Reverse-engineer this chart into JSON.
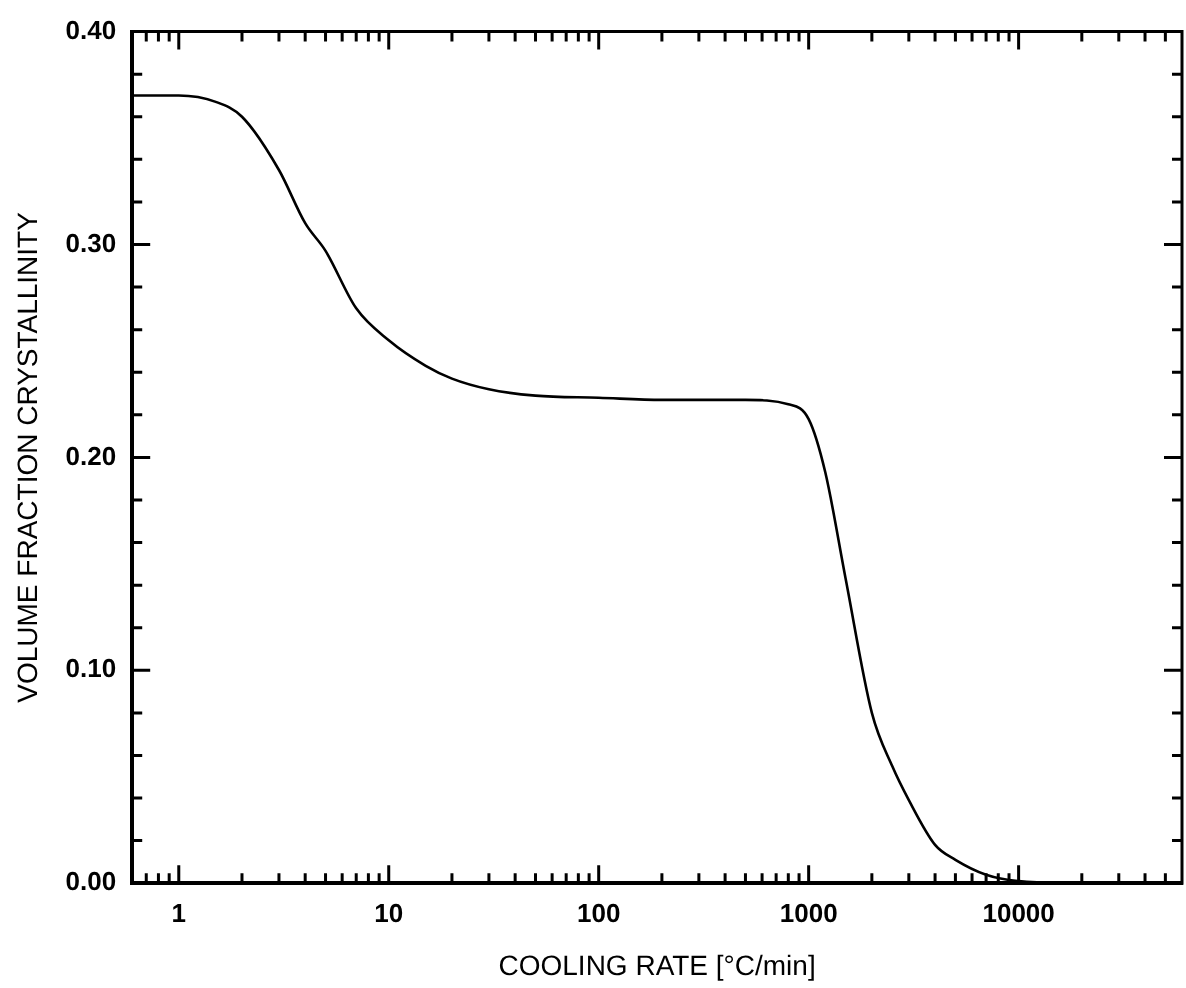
{
  "chart_data": {
    "type": "line",
    "xlabel": "COOLING RATE [°C/min]",
    "ylabel": "VOLUME FRACTION CRYSTALLINITY",
    "log": "x",
    "grid": false,
    "legend": false,
    "marker": "none",
    "line_style": "solid",
    "xlim": [
      0.6,
      60000
    ],
    "ylim": [
      0,
      0.4
    ],
    "xticks": [
      {
        "value": 0.7,
        "label": null
      },
      {
        "value": 0.8,
        "label": null
      },
      {
        "value": 0.9,
        "label": null
      },
      1,
      {
        "value": 2,
        "label": null
      },
      {
        "value": 3,
        "label": null
      },
      {
        "value": 4,
        "label": null
      },
      {
        "value": 5,
        "label": null
      },
      {
        "value": 6,
        "label": null
      },
      {
        "value": 7,
        "label": null
      },
      {
        "value": 8,
        "label": null
      },
      {
        "value": 9,
        "label": null
      },
      10,
      {
        "value": 20,
        "label": null
      },
      {
        "value": 30,
        "label": null
      },
      {
        "value": 40,
        "label": null
      },
      {
        "value": 50,
        "label": null
      },
      {
        "value": 60,
        "label": null
      },
      {
        "value": 70,
        "label": null
      },
      {
        "value": 80,
        "label": null
      },
      {
        "value": 90,
        "label": null
      },
      100,
      {
        "value": 200,
        "label": null
      },
      {
        "value": 300,
        "label": null
      },
      {
        "value": 400,
        "label": null
      },
      {
        "value": 500,
        "label": null
      },
      {
        "value": 600,
        "label": null
      },
      {
        "value": 700,
        "label": null
      },
      {
        "value": 800,
        "label": null
      },
      {
        "value": 900,
        "label": null
      },
      1000,
      {
        "value": 2000,
        "label": null
      },
      {
        "value": 3000,
        "label": null
      },
      {
        "value": 4000,
        "label": null
      },
      {
        "value": 5000,
        "label": null
      },
      {
        "value": 6000,
        "label": null
      },
      {
        "value": 7000,
        "label": null
      },
      {
        "value": 8000,
        "label": null
      },
      {
        "value": 9000,
        "label": null
      },
      10000,
      {
        "value": 20000,
        "label": null
      },
      {
        "value": 30000,
        "label": null
      },
      {
        "value": 40000,
        "label": null
      },
      {
        "value": 50000,
        "label": null
      }
    ],
    "yticks": [
      {
        "value": 0,
        "label": "0.00"
      },
      {
        "value": 0.02,
        "label": null
      },
      {
        "value": 0.04,
        "label": null
      },
      {
        "value": 0.06,
        "label": null
      },
      {
        "value": 0.08,
        "label": null
      },
      {
        "value": 0.1,
        "label": "0.10"
      },
      {
        "value": 0.12,
        "label": null
      },
      {
        "value": 0.14,
        "label": null
      },
      {
        "value": 0.16,
        "label": null
      },
      {
        "value": 0.18,
        "label": null
      },
      {
        "value": 0.2,
        "label": "0.20"
      },
      {
        "value": 0.22,
        "label": null
      },
      {
        "value": 0.24,
        "label": null
      },
      {
        "value": 0.26,
        "label": null
      },
      {
        "value": 0.28,
        "label": null
      },
      {
        "value": 0.3,
        "label": "0.30"
      },
      {
        "value": 0.32,
        "label": null
      },
      {
        "value": 0.34,
        "label": null
      },
      {
        "value": 0.36,
        "label": null
      },
      {
        "value": 0.38,
        "label": null
      },
      {
        "value": 0.4,
        "label": "0.40"
      }
    ],
    "x": [
      0.6,
      1,
      1.5,
      2,
      3,
      4,
      5,
      7,
      10,
      15,
      20,
      30,
      50,
      100,
      200,
      500,
      800,
      1000,
      1200,
      1500,
      2000,
      2500,
      3000,
      4000,
      5000,
      7000,
      10000,
      20000
    ],
    "series": [
      {
        "color": "#000000",
        "values": [
          0.37,
          0.37,
          0.367,
          0.36,
          0.335,
          0.31,
          0.297,
          0.27,
          0.255,
          0.243,
          0.237,
          0.232,
          0.229,
          0.228,
          0.227,
          0.227,
          0.225,
          0.218,
          0.193,
          0.143,
          0.08,
          0.055,
          0.039,
          0.018,
          0.011,
          0.004,
          0.001,
          0
        ]
      }
    ]
  }
}
